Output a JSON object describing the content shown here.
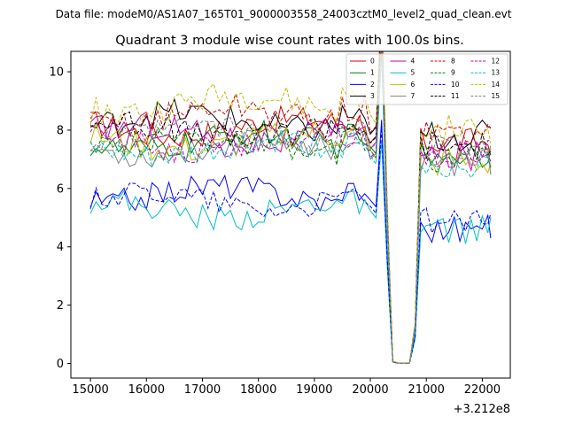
{
  "chart_data": {
    "type": "line",
    "suptitle": "Data file: modeM0/AS1A07_165T01_9000003558_24003cztM0_level2_quad_clean.evt",
    "title": "Quadrant 3 module wise count rates with 100.0s bins.",
    "xlabel": "",
    "ylabel": "",
    "x_offset_label": "+3.212e8",
    "xlim": [
      14650,
      22500
    ],
    "ylim": [
      -0.5,
      10.7
    ],
    "x_ticks": [
      15000,
      16000,
      17000,
      18000,
      19000,
      20000,
      21000,
      22000
    ],
    "y_ticks": [
      0,
      2,
      4,
      6,
      8,
      10
    ],
    "legend": {
      "location": "top-right",
      "columns": 4
    },
    "x": [
      15000,
      15100,
      15200,
      15300,
      15400,
      15500,
      15600,
      15700,
      15800,
      15900,
      16000,
      16100,
      16200,
      16300,
      16400,
      16500,
      16600,
      16700,
      16800,
      16900,
      17000,
      17100,
      17200,
      17300,
      17400,
      17500,
      17600,
      17700,
      17800,
      17900,
      18000,
      18100,
      18200,
      18300,
      18400,
      18500,
      18600,
      18700,
      18800,
      18900,
      19000,
      19100,
      19200,
      19300,
      19400,
      19500,
      19600,
      19700,
      19800,
      19900,
      20000,
      20100,
      20200,
      20300,
      20400,
      20500,
      20600,
      20700,
      20800,
      20900,
      21000,
      21100,
      21200,
      21300,
      21400,
      21500,
      21600,
      21700,
      21800,
      21900,
      22000,
      22100,
      22150
    ],
    "dip": [
      1.2,
      0.8,
      0.1,
      0.02,
      0.02,
      0.05,
      0.4
    ],
    "dip_x_from": 20200,
    "series": [
      {
        "name": "0",
        "color": "#d00000",
        "dash": "",
        "base": 8.1,
        "amp": 0.45,
        "tail": 7.6
      },
      {
        "name": "1",
        "color": "#008000",
        "dash": "",
        "base": 7.6,
        "amp": 0.45,
        "tail": 7.2
      },
      {
        "name": "2",
        "color": "#0000ff",
        "dash": "",
        "base": 5.8,
        "amp": 0.45,
        "tail": 4.6
      },
      {
        "name": "3",
        "color": "#000000",
        "dash": "",
        "base": 8.3,
        "amp": 0.5,
        "tail": 7.8
      },
      {
        "name": "4",
        "color": "#bf00bf",
        "dash": "",
        "base": 7.9,
        "amp": 0.5,
        "tail": 7.1
      },
      {
        "name": "5",
        "color": "#00bfbf",
        "dash": "",
        "base": 5.3,
        "amp": 0.45,
        "tail": 4.6
      },
      {
        "name": "6",
        "color": "#bfbf00",
        "dash": "",
        "base": 7.6,
        "amp": 0.5,
        "tail": 6.9
      },
      {
        "name": "7",
        "color": "#808080",
        "dash": "",
        "base": 7.4,
        "amp": 0.45,
        "tail": 6.9
      },
      {
        "name": "8",
        "color": "#d00000",
        "dash": "4,2",
        "base": 8.5,
        "amp": 0.5,
        "tail": 7.9
      },
      {
        "name": "9",
        "color": "#008000",
        "dash": "4,2",
        "base": 7.5,
        "amp": 0.45,
        "tail": 7.0
      },
      {
        "name": "10",
        "color": "#0000ff",
        "dash": "4,2",
        "base": 5.6,
        "amp": 0.4,
        "tail": 4.9
      },
      {
        "name": "11",
        "color": "#000000",
        "dash": "4,2",
        "base": 8.0,
        "amp": 0.5,
        "tail": 7.5
      },
      {
        "name": "12",
        "color": "#bf00bf",
        "dash": "4,2",
        "base": 7.6,
        "amp": 0.45,
        "tail": 7.2
      },
      {
        "name": "13",
        "color": "#00bfbf",
        "dash": "4,2",
        "base": 7.3,
        "amp": 0.45,
        "tail": 6.8
      },
      {
        "name": "14",
        "color": "#bfbf00",
        "dash": "4,2",
        "base": 8.9,
        "amp": 0.5,
        "tail": 8.0
      },
      {
        "name": "15",
        "color": "#808080",
        "dash": "4,2",
        "base": 7.8,
        "amp": 0.45,
        "tail": 7.3
      }
    ]
  }
}
